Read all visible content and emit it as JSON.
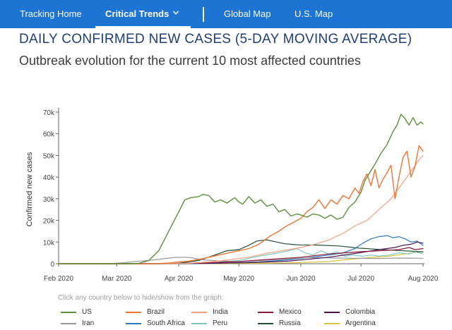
{
  "nav": {
    "items": [
      {
        "label": "Tracking Home",
        "active": false
      },
      {
        "label": "Critical Trends",
        "active": true
      },
      {
        "label": "Global Map",
        "active": false
      },
      {
        "label": "U.S. Map",
        "active": false
      }
    ]
  },
  "header": {
    "title": "DAILY CONFIRMED NEW CASES (5-DAY MOVING AVERAGE)",
    "subtitle": "Outbreak evolution for the current 10 most affected countries"
  },
  "legend_hint": "Click any country below to hide/show from the graph:",
  "colors": {
    "nav_bg": "#1e74d3",
    "title": "#1f3f74"
  },
  "chart_data": {
    "type": "line",
    "title": "",
    "xlabel": "",
    "ylabel": "Confirmed new cases",
    "x_domain_days": [
      0,
      182
    ],
    "ylim": [
      0,
      70000
    ],
    "yticks": [
      0,
      10000,
      20000,
      30000,
      40000,
      50000,
      60000,
      70000
    ],
    "ytick_labels": [
      "0",
      "10k",
      "20k",
      "30k",
      "40k",
      "50k",
      "60k",
      "70k"
    ],
    "xticks_days": [
      0,
      29,
      60,
      90,
      121,
      151,
      182
    ],
    "xtick_labels": [
      "Feb 2020",
      "Mar 2020",
      "Apr 2020",
      "May 2020",
      "Jun 2020",
      "Jul 2020",
      "Aug 2020"
    ],
    "grid": false,
    "x_unit": "days since 2020-02-01",
    "series": [
      {
        "name": "US",
        "color": "#5b8f3b",
        "width": 1.4,
        "points": [
          [
            0,
            0
          ],
          [
            35,
            0
          ],
          [
            40,
            200
          ],
          [
            45,
            1500
          ],
          [
            50,
            6000
          ],
          [
            55,
            15000
          ],
          [
            60,
            24000
          ],
          [
            63,
            29500
          ],
          [
            66,
            30500
          ],
          [
            70,
            31000
          ],
          [
            72,
            32000
          ],
          [
            75,
            31500
          ],
          [
            78,
            28500
          ],
          [
            81,
            29500
          ],
          [
            84,
            28000
          ],
          [
            88,
            30500
          ],
          [
            90,
            28500
          ],
          [
            92,
            27500
          ],
          [
            95,
            31000
          ],
          [
            98,
            28000
          ],
          [
            101,
            29500
          ],
          [
            104,
            26500
          ],
          [
            107,
            27500
          ],
          [
            110,
            24000
          ],
          [
            113,
            25000
          ],
          [
            116,
            22000
          ],
          [
            119,
            23000
          ],
          [
            121,
            22500
          ],
          [
            124,
            21500
          ],
          [
            127,
            23000
          ],
          [
            130,
            22500
          ],
          [
            133,
            21000
          ],
          [
            136,
            22500
          ],
          [
            139,
            20500
          ],
          [
            142,
            21500
          ],
          [
            145,
            26000
          ],
          [
            148,
            28500
          ],
          [
            151,
            33000
          ],
          [
            153,
            38500
          ],
          [
            155,
            41500
          ],
          [
            158,
            46000
          ],
          [
            161,
            51000
          ],
          [
            164,
            55000
          ],
          [
            167,
            61000
          ],
          [
            169,
            64000
          ],
          [
            171,
            69000
          ],
          [
            173,
            67000
          ],
          [
            175,
            64000
          ],
          [
            177,
            67500
          ],
          [
            179,
            64000
          ],
          [
            181,
            65500
          ],
          [
            182,
            64500
          ]
        ]
      },
      {
        "name": "Brazil",
        "color": "#e87636",
        "width": 1.4,
        "points": [
          [
            0,
            0
          ],
          [
            48,
            0
          ],
          [
            55,
            300
          ],
          [
            60,
            800
          ],
          [
            65,
            1200
          ],
          [
            70,
            2000
          ],
          [
            75,
            3000
          ],
          [
            80,
            4000
          ],
          [
            85,
            5000
          ],
          [
            90,
            6000
          ],
          [
            95,
            7000
          ],
          [
            100,
            9000
          ],
          [
            103,
            11000
          ],
          [
            106,
            13000
          ],
          [
            110,
            15000
          ],
          [
            113,
            17000
          ],
          [
            116,
            18500
          ],
          [
            119,
            20000
          ],
          [
            121,
            21000
          ],
          [
            124,
            24000
          ],
          [
            127,
            26000
          ],
          [
            130,
            29500
          ],
          [
            133,
            25500
          ],
          [
            136,
            29500
          ],
          [
            139,
            27500
          ],
          [
            142,
            31500
          ],
          [
            145,
            30000
          ],
          [
            148,
            35000
          ],
          [
            150,
            32500
          ],
          [
            152,
            38000
          ],
          [
            154,
            41500
          ],
          [
            156,
            36000
          ],
          [
            158,
            43500
          ],
          [
            160,
            35000
          ],
          [
            162,
            39000
          ],
          [
            164,
            42000
          ],
          [
            166,
            45500
          ],
          [
            168,
            30000
          ],
          [
            170,
            40000
          ],
          [
            172,
            49000
          ],
          [
            174,
            52000
          ],
          [
            176,
            40000
          ],
          [
            178,
            45000
          ],
          [
            180,
            54500
          ],
          [
            182,
            52000
          ]
        ]
      },
      {
        "name": "India",
        "color": "#f0a080",
        "width": 1.2,
        "points": [
          [
            0,
            0
          ],
          [
            55,
            0
          ],
          [
            65,
            200
          ],
          [
            75,
            800
          ],
          [
            85,
            1800
          ],
          [
            95,
            3000
          ],
          [
            105,
            5000
          ],
          [
            115,
            6500
          ],
          [
            121,
            7500
          ],
          [
            128,
            9000
          ],
          [
            135,
            11000
          ],
          [
            142,
            14000
          ],
          [
            148,
            17500
          ],
          [
            154,
            20000
          ],
          [
            160,
            25000
          ],
          [
            166,
            30000
          ],
          [
            170,
            35000
          ],
          [
            174,
            40000
          ],
          [
            177,
            44000
          ],
          [
            180,
            48000
          ],
          [
            182,
            50000
          ]
        ]
      },
      {
        "name": "Mexico",
        "color": "#8b1a3a",
        "width": 1.2,
        "points": [
          [
            0,
            0
          ],
          [
            50,
            0
          ],
          [
            70,
            300
          ],
          [
            90,
            1000
          ],
          [
            105,
            2000
          ],
          [
            121,
            3000
          ],
          [
            135,
            4500
          ],
          [
            150,
            5500
          ],
          [
            160,
            6000
          ],
          [
            170,
            6500
          ],
          [
            175,
            7500
          ],
          [
            178,
            6500
          ],
          [
            182,
            7000
          ]
        ]
      },
      {
        "name": "Colombia",
        "color": "#4a1450",
        "width": 1.2,
        "points": [
          [
            0,
            0
          ],
          [
            55,
            0
          ],
          [
            75,
            200
          ],
          [
            95,
            500
          ],
          [
            115,
            1200
          ],
          [
            135,
            3000
          ],
          [
            150,
            5000
          ],
          [
            160,
            6500
          ],
          [
            168,
            7500
          ],
          [
            172,
            8500
          ],
          [
            176,
            9000
          ],
          [
            179,
            10000
          ],
          [
            182,
            9500
          ]
        ]
      },
      {
        "name": "Iran",
        "color": "#9a9a9a",
        "width": 1.2,
        "points": [
          [
            0,
            0
          ],
          [
            25,
            0
          ],
          [
            33,
            500
          ],
          [
            40,
            1200
          ],
          [
            45,
            1500
          ],
          [
            50,
            2000
          ],
          [
            55,
            2600
          ],
          [
            58,
            2900
          ],
          [
            62,
            3000
          ],
          [
            66,
            2800
          ],
          [
            72,
            1800
          ],
          [
            80,
            1300
          ],
          [
            90,
            1000
          ],
          [
            100,
            1400
          ],
          [
            110,
            1900
          ],
          [
            121,
            2600
          ],
          [
            130,
            2800
          ],
          [
            145,
            2500
          ],
          [
            160,
            2400
          ],
          [
            170,
            2600
          ],
          [
            182,
            2500
          ]
        ]
      },
      {
        "name": "South Africa",
        "color": "#2e78c4",
        "width": 1.2,
        "points": [
          [
            0,
            0
          ],
          [
            60,
            0
          ],
          [
            80,
            200
          ],
          [
            100,
            800
          ],
          [
            115,
            1800
          ],
          [
            125,
            2800
          ],
          [
            135,
            4000
          ],
          [
            142,
            5000
          ],
          [
            148,
            7000
          ],
          [
            152,
            9500
          ],
          [
            156,
            11500
          ],
          [
            160,
            12500
          ],
          [
            164,
            13000
          ],
          [
            167,
            12000
          ],
          [
            170,
            12500
          ],
          [
            173,
            11500
          ],
          [
            176,
            10000
          ],
          [
            179,
            10500
          ],
          [
            182,
            8500
          ]
        ]
      },
      {
        "name": "Peru",
        "color": "#7cc7c0",
        "width": 1.2,
        "points": [
          [
            0,
            0
          ],
          [
            60,
            0
          ],
          [
            75,
            300
          ],
          [
            90,
            1500
          ],
          [
            100,
            3500
          ],
          [
            110,
            5000
          ],
          [
            115,
            6000
          ],
          [
            119,
            7000
          ],
          [
            123,
            5000
          ],
          [
            127,
            4000
          ],
          [
            131,
            6000
          ],
          [
            135,
            4500
          ],
          [
            139,
            5500
          ],
          [
            143,
            3500
          ],
          [
            147,
            4000
          ],
          [
            152,
            3500
          ],
          [
            156,
            4000
          ],
          [
            160,
            3500
          ],
          [
            165,
            4000
          ],
          [
            170,
            5000
          ],
          [
            175,
            4500
          ],
          [
            178,
            5500
          ],
          [
            182,
            4500
          ]
        ]
      },
      {
        "name": "Russia",
        "color": "#1f4d35",
        "width": 1.2,
        "points": [
          [
            0,
            0
          ],
          [
            50,
            0
          ],
          [
            60,
            200
          ],
          [
            70,
            1500
          ],
          [
            78,
            4000
          ],
          [
            84,
            6000
          ],
          [
            90,
            6500
          ],
          [
            95,
            8500
          ],
          [
            99,
            10500
          ],
          [
            104,
            11000
          ],
          [
            108,
            10200
          ],
          [
            113,
            9200
          ],
          [
            118,
            8800
          ],
          [
            121,
            8700
          ],
          [
            130,
            8600
          ],
          [
            140,
            8200
          ],
          [
            150,
            7200
          ],
          [
            160,
            6600
          ],
          [
            170,
            6100
          ],
          [
            182,
            5500
          ]
        ]
      },
      {
        "name": "Argentina",
        "color": "#d8c43a",
        "width": 1.2,
        "points": [
          [
            0,
            0
          ],
          [
            60,
            0
          ],
          [
            100,
            200
          ],
          [
            120,
            500
          ],
          [
            135,
            1000
          ],
          [
            145,
            2000
          ],
          [
            155,
            2800
          ],
          [
            165,
            3500
          ],
          [
            175,
            4800
          ],
          [
            182,
            5600
          ]
        ]
      }
    ]
  }
}
